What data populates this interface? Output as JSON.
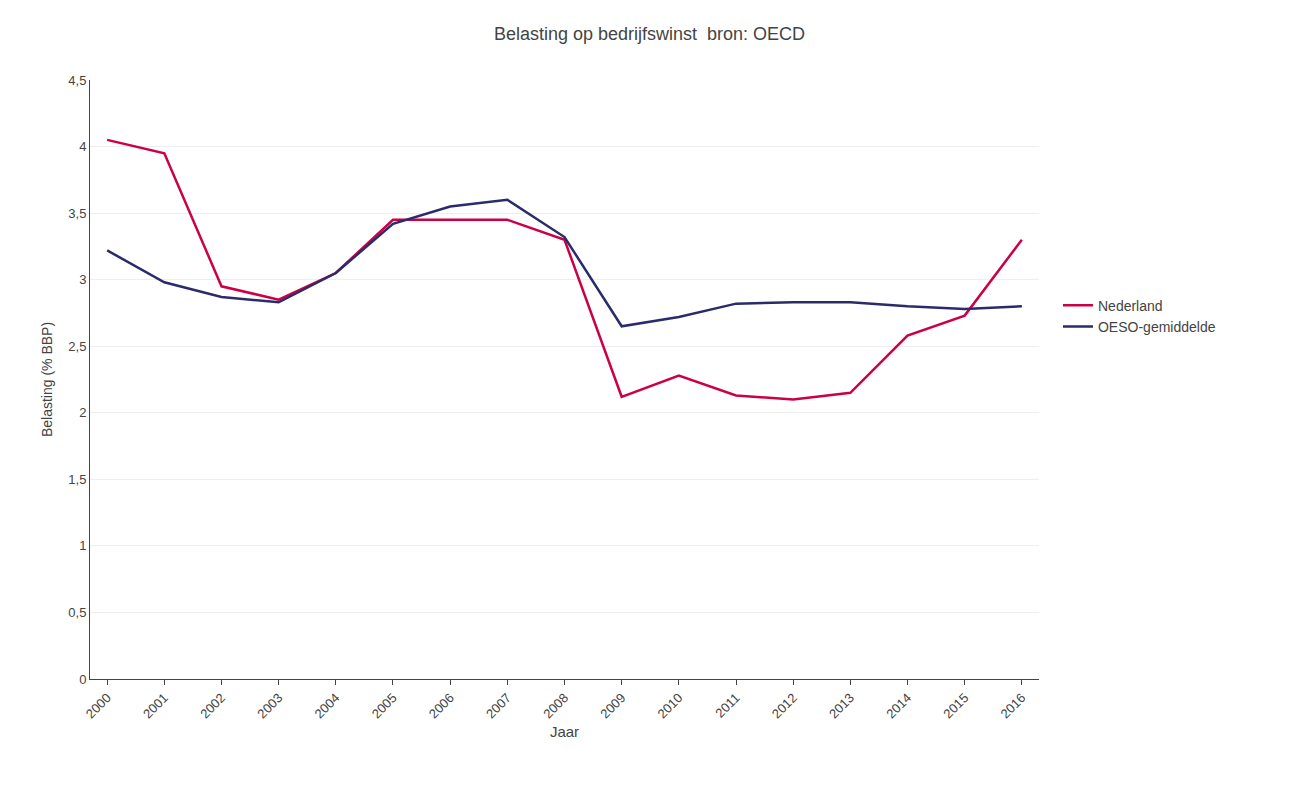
{
  "chart_data": {
    "type": "line",
    "title": "Belasting op bedrijfswinst  bron: OECD",
    "x_label": "Jaar",
    "y_label": "Belasting (% BBP)",
    "x": [
      2000,
      2001,
      2002,
      2003,
      2004,
      2005,
      2006,
      2007,
      2008,
      2009,
      2010,
      2011,
      2012,
      2013,
      2014,
      2015,
      2016
    ],
    "series": [
      {
        "name": "Nederland",
        "color": "#CC0044",
        "values": [
          4.05,
          3.95,
          2.95,
          2.85,
          3.05,
          3.45,
          3.45,
          3.45,
          3.3,
          2.12,
          2.28,
          2.13,
          2.1,
          2.15,
          2.58,
          2.73,
          3.3
        ]
      },
      {
        "name": "OESO-gemiddelde",
        "color": "#2B2B6B",
        "values": [
          3.22,
          2.98,
          2.87,
          2.83,
          3.05,
          3.42,
          3.55,
          3.6,
          3.32,
          2.65,
          2.72,
          2.82,
          2.83,
          2.83,
          2.8,
          2.78,
          2.8
        ]
      }
    ],
    "xlim": [
      1999.7,
      2016.3
    ],
    "xticks": [
      2000,
      2001,
      2002,
      2003,
      2004,
      2005,
      2006,
      2007,
      2008,
      2009,
      2010,
      2011,
      2012,
      2013,
      2014,
      2015,
      2016
    ],
    "ylim": [
      0,
      4.5
    ],
    "yticks": [
      0,
      {
        "value": 0.5,
        "label": "0,5"
      },
      1,
      {
        "value": 1.5,
        "label": "1,5"
      },
      2,
      {
        "value": 2.5,
        "label": "2,5"
      },
      3,
      {
        "value": 3.5,
        "label": "3,5"
      },
      4,
      {
        "value": 4.5,
        "label": "4,5"
      }
    ],
    "grid": "y",
    "legend": "right"
  }
}
